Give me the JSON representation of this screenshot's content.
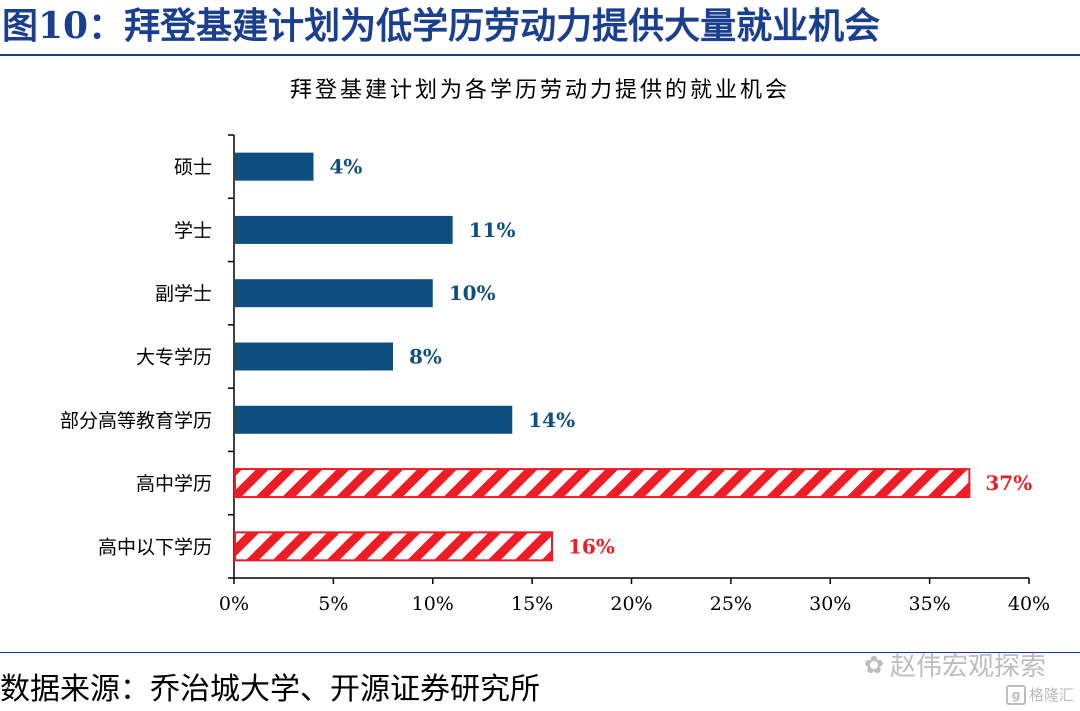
{
  "header": {
    "title": "图10：拜登基建计划为低学历劳动力提供大量就业机会"
  },
  "colors": {
    "blue": "#0e4f80",
    "red": "#ee1c25",
    "header": "#1a3f8f"
  },
  "chart_data": {
    "type": "bar",
    "orientation": "horizontal",
    "title": "拜登基建计划为各学历劳动力提供的就业机会",
    "xlabel": "",
    "ylabel": "",
    "categories": [
      "硕士",
      "学士",
      "副学士",
      "大专学历",
      "部分高等教育学历",
      "高中学历",
      "高中以下学历"
    ],
    "values": [
      4,
      11,
      10,
      8,
      14,
      37,
      16
    ],
    "value_labels": [
      "4%",
      "11%",
      "10%",
      "8%",
      "14%",
      "37%",
      "16%"
    ],
    "highlight": [
      false,
      false,
      false,
      false,
      false,
      true,
      true
    ],
    "xlim": [
      0,
      40
    ],
    "xticks": [
      0,
      5,
      10,
      15,
      20,
      25,
      30,
      35,
      40
    ],
    "xtick_labels": [
      "0%",
      "5%",
      "10%",
      "15%",
      "20%",
      "25%",
      "30%",
      "35%",
      "40%"
    ],
    "grid": false,
    "legend": "none"
  },
  "footer": {
    "source": "数据来源：乔治城大学、开源证券研究所",
    "watermark": "赵伟宏观探索",
    "watermark_icon": "wechat-icon",
    "logo_text": "格隆汇",
    "logo_icon": "g"
  }
}
